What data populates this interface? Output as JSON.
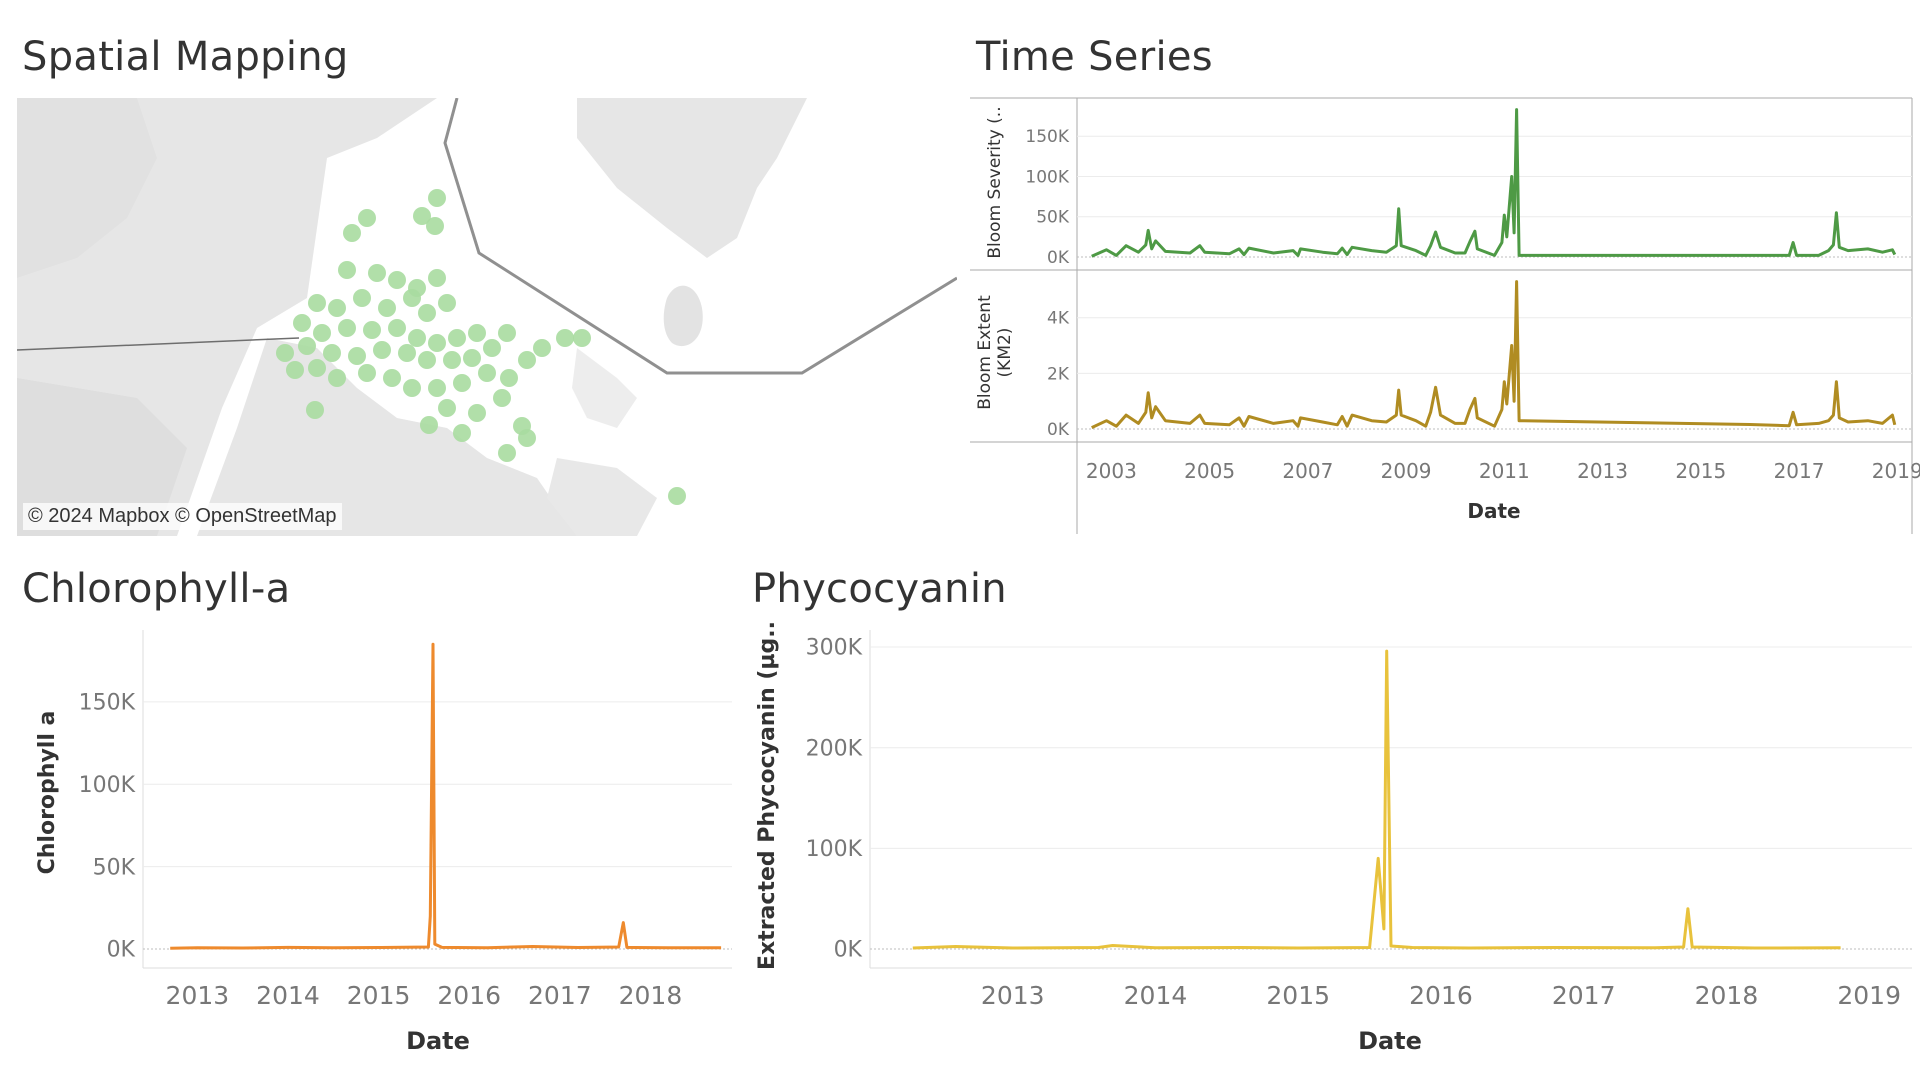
{
  "panels": {
    "spatial": {
      "title": "Spatial Mapping",
      "attribution": "© 2024 Mapbox © OpenStreetMap",
      "point_color": "#a8dca0"
    },
    "timeseries": {
      "title": "Time Series"
    },
    "chlorophyll": {
      "title": "Chlorophyll-a"
    },
    "phycocyanin": {
      "title": "Phycocyanin"
    }
  },
  "chart_data": [
    {
      "id": "bloom-severity",
      "type": "line",
      "title": "Time Series",
      "ylabel": "Bloom Severity (..",
      "xlabel": "",
      "color": "#4e9a45",
      "ylim": [
        0,
        185000
      ],
      "y_ticks": [
        0,
        50000,
        100000,
        150000
      ],
      "y_tick_labels": [
        "0K",
        "50K",
        "100K",
        "150K"
      ],
      "x_range": [
        2002.3,
        2019.3
      ],
      "grid": true,
      "points": [
        [
          2002.6,
          1000
        ],
        [
          2002.9,
          9000
        ],
        [
          2003.1,
          2000
        ],
        [
          2003.3,
          14000
        ],
        [
          2003.55,
          6000
        ],
        [
          2003.7,
          15000
        ],
        [
          2003.75,
          33000
        ],
        [
          2003.82,
          10000
        ],
        [
          2003.9,
          20000
        ],
        [
          2004.1,
          7000
        ],
        [
          2004.6,
          5000
        ],
        [
          2004.8,
          14000
        ],
        [
          2004.9,
          6000
        ],
        [
          2005.4,
          4000
        ],
        [
          2005.6,
          10000
        ],
        [
          2005.7,
          3000
        ],
        [
          2005.8,
          11000
        ],
        [
          2006.3,
          5000
        ],
        [
          2006.7,
          8000
        ],
        [
          2006.8,
          2000
        ],
        [
          2006.85,
          10000
        ],
        [
          2007.3,
          6000
        ],
        [
          2007.6,
          4000
        ],
        [
          2007.7,
          11000
        ],
        [
          2007.8,
          3000
        ],
        [
          2007.9,
          12000
        ],
        [
          2008.3,
          8000
        ],
        [
          2008.6,
          6000
        ],
        [
          2008.8,
          14000
        ],
        [
          2008.85,
          60000
        ],
        [
          2008.9,
          14000
        ],
        [
          2009.2,
          8000
        ],
        [
          2009.4,
          2000
        ],
        [
          2009.5,
          14000
        ],
        [
          2009.6,
          31000
        ],
        [
          2009.7,
          12000
        ],
        [
          2010.0,
          5000
        ],
        [
          2010.2,
          5000
        ],
        [
          2010.3,
          19000
        ],
        [
          2010.4,
          32000
        ],
        [
          2010.45,
          10000
        ],
        [
          2010.8,
          2000
        ],
        [
          2010.95,
          18000
        ],
        [
          2011.0,
          52000
        ],
        [
          2011.05,
          25000
        ],
        [
          2011.15,
          100000
        ],
        [
          2011.2,
          30000
        ],
        [
          2011.25,
          183000
        ],
        [
          2011.3,
          2000
        ],
        [
          2012.0,
          2000
        ],
        [
          2014.0,
          2000
        ],
        [
          2016.0,
          2000
        ],
        [
          2016.8,
          2000
        ],
        [
          2016.88,
          18000
        ],
        [
          2016.95,
          2000
        ],
        [
          2017.4,
          2000
        ],
        [
          2017.6,
          8000
        ],
        [
          2017.7,
          15000
        ],
        [
          2017.76,
          55000
        ],
        [
          2017.82,
          12000
        ],
        [
          2018.0,
          8000
        ],
        [
          2018.4,
          10000
        ],
        [
          2018.7,
          6000
        ],
        [
          2018.9,
          9000
        ],
        [
          2018.95,
          3000
        ]
      ]
    },
    {
      "id": "bloom-extent",
      "type": "line",
      "ylabel": "Bloom Extent (KM2)",
      "xlabel": "Date",
      "color": "#b08c22",
      "ylim": [
        0,
        5500
      ],
      "y_ticks": [
        0,
        2000,
        4000
      ],
      "y_tick_labels": [
        "0K",
        "2K",
        "4K"
      ],
      "x_range": [
        2002.3,
        2019.3
      ],
      "x_ticks": [
        2003,
        2005,
        2007,
        2009,
        2011,
        2013,
        2015,
        2017,
        2019
      ],
      "x_tick_labels": [
        "2003",
        "2005",
        "2007",
        "2009",
        "2011",
        "2013",
        "2015",
        "2017",
        "2019"
      ],
      "grid": true,
      "points": [
        [
          2002.6,
          50
        ],
        [
          2002.9,
          300
        ],
        [
          2003.1,
          100
        ],
        [
          2003.3,
          500
        ],
        [
          2003.55,
          200
        ],
        [
          2003.7,
          600
        ],
        [
          2003.75,
          1300
        ],
        [
          2003.82,
          400
        ],
        [
          2003.9,
          800
        ],
        [
          2004.1,
          300
        ],
        [
          2004.6,
          200
        ],
        [
          2004.8,
          500
        ],
        [
          2004.9,
          200
        ],
        [
          2005.4,
          150
        ],
        [
          2005.6,
          400
        ],
        [
          2005.7,
          100
        ],
        [
          2005.8,
          450
        ],
        [
          2006.3,
          200
        ],
        [
          2006.7,
          300
        ],
        [
          2006.8,
          100
        ],
        [
          2006.85,
          400
        ],
        [
          2007.3,
          250
        ],
        [
          2007.6,
          150
        ],
        [
          2007.7,
          450
        ],
        [
          2007.8,
          100
        ],
        [
          2007.9,
          500
        ],
        [
          2008.3,
          300
        ],
        [
          2008.6,
          250
        ],
        [
          2008.8,
          500
        ],
        [
          2008.85,
          1400
        ],
        [
          2008.9,
          500
        ],
        [
          2009.2,
          300
        ],
        [
          2009.4,
          100
        ],
        [
          2009.5,
          600
        ],
        [
          2009.6,
          1500
        ],
        [
          2009.7,
          500
        ],
        [
          2010.0,
          200
        ],
        [
          2010.2,
          200
        ],
        [
          2010.3,
          700
        ],
        [
          2010.4,
          1100
        ],
        [
          2010.45,
          400
        ],
        [
          2010.8,
          100
        ],
        [
          2010.95,
          700
        ],
        [
          2011.0,
          1700
        ],
        [
          2011.05,
          900
        ],
        [
          2011.15,
          3000
        ],
        [
          2011.2,
          1000
        ],
        [
          2011.25,
          5300
        ],
        [
          2011.3,
          300
        ],
        [
          2012.0,
          280
        ],
        [
          2014.0,
          220
        ],
        [
          2016.0,
          160
        ],
        [
          2016.8,
          120
        ],
        [
          2016.88,
          600
        ],
        [
          2016.95,
          150
        ],
        [
          2017.4,
          200
        ],
        [
          2017.6,
          300
        ],
        [
          2017.7,
          500
        ],
        [
          2017.76,
          1700
        ],
        [
          2017.82,
          400
        ],
        [
          2018.0,
          250
        ],
        [
          2018.4,
          300
        ],
        [
          2018.7,
          200
        ],
        [
          2018.9,
          500
        ],
        [
          2018.95,
          150
        ]
      ]
    },
    {
      "id": "chlorophyll",
      "type": "line",
      "title": "Chlorophyll-a",
      "ylabel": "Chlorophyll a",
      "xlabel": "Date",
      "color": "#ee8a2d",
      "ylim": [
        0,
        190000
      ],
      "y_ticks": [
        0,
        50000,
        100000,
        150000
      ],
      "y_tick_labels": [
        "0K",
        "50K",
        "100K",
        "150K"
      ],
      "x_range": [
        2012.4,
        2018.9
      ],
      "x_ticks": [
        2013,
        2014,
        2015,
        2016,
        2017,
        2018
      ],
      "x_tick_labels": [
        "2013",
        "2014",
        "2015",
        "2016",
        "2017",
        "2018"
      ],
      "grid": true,
      "points": [
        [
          2012.7,
          500
        ],
        [
          2013.0,
          800
        ],
        [
          2013.5,
          600
        ],
        [
          2014.0,
          1000
        ],
        [
          2014.5,
          700
        ],
        [
          2015.0,
          900
        ],
        [
          2015.55,
          1200
        ],
        [
          2015.57,
          20000
        ],
        [
          2015.6,
          185000
        ],
        [
          2015.62,
          3000
        ],
        [
          2015.7,
          1000
        ],
        [
          2016.2,
          800
        ],
        [
          2016.7,
          1500
        ],
        [
          2017.2,
          900
        ],
        [
          2017.65,
          1200
        ],
        [
          2017.7,
          16000
        ],
        [
          2017.74,
          1000
        ],
        [
          2018.2,
          800
        ],
        [
          2018.78,
          700
        ]
      ]
    },
    {
      "id": "phycocyanin",
      "type": "line",
      "title": "Phycocyanin",
      "ylabel": "Extracted Phycocyanin (µg..",
      "xlabel": "Date",
      "color": "#e8c23c",
      "ylim": [
        0,
        305000
      ],
      "y_ticks": [
        0,
        100000,
        200000,
        300000
      ],
      "y_tick_labels": [
        "0K",
        "100K",
        "200K",
        "300K"
      ],
      "x_range": [
        2012.0,
        2019.3
      ],
      "x_ticks": [
        2013,
        2014,
        2015,
        2016,
        2017,
        2018,
        2019
      ],
      "x_tick_labels": [
        "2013",
        "2014",
        "2015",
        "2016",
        "2017",
        "2018",
        "2019"
      ],
      "grid": true,
      "points": [
        [
          2012.3,
          1000
        ],
        [
          2012.6,
          2500
        ],
        [
          2013.0,
          1000
        ],
        [
          2013.6,
          1500
        ],
        [
          2013.7,
          3500
        ],
        [
          2014.0,
          1200
        ],
        [
          2014.6,
          1500
        ],
        [
          2015.0,
          1000
        ],
        [
          2015.5,
          1500
        ],
        [
          2015.56,
          90000
        ],
        [
          2015.6,
          20000
        ],
        [
          2015.62,
          296000
        ],
        [
          2015.65,
          3000
        ],
        [
          2015.8,
          1500
        ],
        [
          2016.2,
          1000
        ],
        [
          2016.8,
          1500
        ],
        [
          2017.5,
          1200
        ],
        [
          2017.7,
          2000
        ],
        [
          2017.73,
          40000
        ],
        [
          2017.76,
          2000
        ],
        [
          2018.2,
          1000
        ],
        [
          2018.8,
          1200
        ]
      ]
    }
  ]
}
